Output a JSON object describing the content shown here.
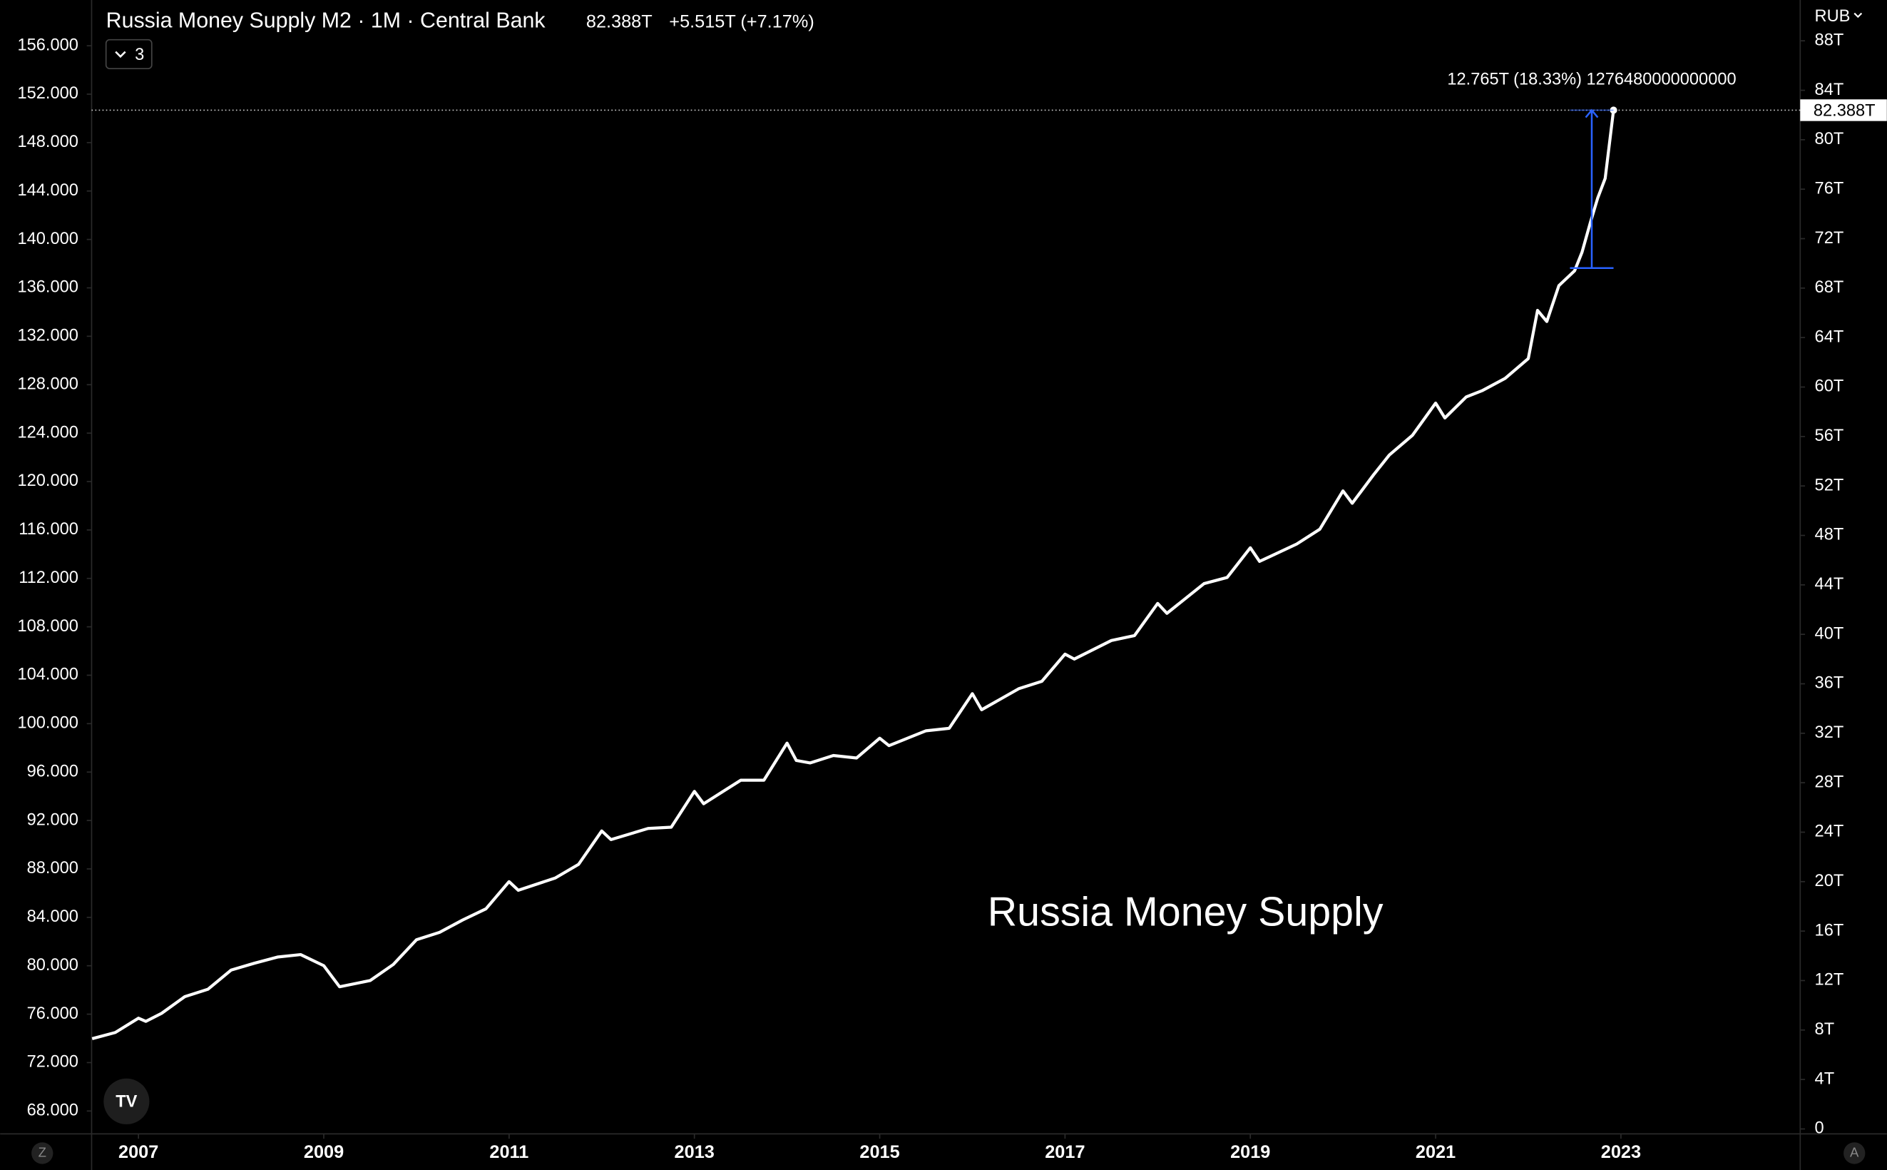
{
  "chart_data": {
    "type": "line",
    "title": "Russia Money Supply M2 · 1M · Central Bank",
    "last_value_label": "82.388T",
    "change_label": "+5.515T (+7.17%)",
    "indicator_count": "3",
    "currency": "RUB",
    "watermark": "Russia Money Supply",
    "price_label": "82.388T",
    "left_badge": "Z",
    "right_badge": "A",
    "measure": {
      "label": "12.765T (18.33%) 1276480000000000",
      "x": [
        2022.45,
        2022.92
      ],
      "y": [
        69.623,
        82.388
      ],
      "color": "#2962ff"
    },
    "xlim": [
      2006.494,
      2024.935
    ],
    "xticks": [
      2007,
      2009,
      2011,
      2013,
      2015,
      2017,
      2019,
      2021,
      2023
    ],
    "ylim": [
      66.11,
      159.78
    ],
    "yticks": [
      {
        "value": 68,
        "label": "68.000"
      },
      {
        "value": 72,
        "label": "72.000"
      },
      {
        "value": 76,
        "label": "76.000"
      },
      {
        "value": 80,
        "label": "80.000"
      },
      {
        "value": 84,
        "label": "84.000"
      },
      {
        "value": 88,
        "label": "88.000"
      },
      {
        "value": 92,
        "label": "92.000"
      },
      {
        "value": 96,
        "label": "96.000"
      },
      {
        "value": 100,
        "label": "100.000"
      },
      {
        "value": 104,
        "label": "104.000"
      },
      {
        "value": 108,
        "label": "108.000"
      },
      {
        "value": 112,
        "label": "112.000"
      },
      {
        "value": 116,
        "label": "116.000"
      },
      {
        "value": 120,
        "label": "120.000"
      },
      {
        "value": 124,
        "label": "124.000"
      },
      {
        "value": 128,
        "label": "128.000"
      },
      {
        "value": 132,
        "label": "132.000"
      },
      {
        "value": 136,
        "label": "136.000"
      },
      {
        "value": 140,
        "label": "140.000"
      },
      {
        "value": 144,
        "label": "144.000"
      },
      {
        "value": 148,
        "label": "148.000"
      },
      {
        "value": 152,
        "label": "152.000"
      },
      {
        "value": 156,
        "label": "156.000"
      }
    ],
    "y2lim": [
      -0.4,
      91.3
    ],
    "y2ticks": [
      0,
      {
        "value": 4,
        "label": "4T"
      },
      {
        "value": 8,
        "label": "8T"
      },
      {
        "value": 12,
        "label": "12T"
      },
      {
        "value": 16,
        "label": "16T"
      },
      {
        "value": 20,
        "label": "20T"
      },
      {
        "value": 24,
        "label": "24T"
      },
      {
        "value": 28,
        "label": "28T"
      },
      {
        "value": 32,
        "label": "32T"
      },
      {
        "value": 36,
        "label": "36T"
      },
      {
        "value": 40,
        "label": "40T"
      },
      {
        "value": 44,
        "label": "44T"
      },
      {
        "value": 48,
        "label": "48T"
      },
      {
        "value": 52,
        "label": "52T"
      },
      {
        "value": 56,
        "label": "56T"
      },
      {
        "value": 60,
        "label": "60T"
      },
      {
        "value": 64,
        "label": "64T"
      },
      {
        "value": 68,
        "label": "68T"
      },
      {
        "value": 72,
        "label": "72T"
      },
      {
        "value": 76,
        "label": "76T"
      },
      {
        "value": 80,
        "label": "80T"
      },
      {
        "value": 84,
        "label": "84T"
      },
      {
        "value": 88,
        "label": "88T"
      }
    ],
    "series": [
      {
        "name": "Russia Money Supply M2",
        "color": "#ffffff",
        "axis": "y2",
        "x": [
          2006.5,
          2006.75,
          2007.0,
          2007.08,
          2007.25,
          2007.5,
          2007.75,
          2008.0,
          2008.25,
          2008.5,
          2008.75,
          2009.0,
          2009.17,
          2009.5,
          2009.75,
          2010.0,
          2010.25,
          2010.5,
          2010.75,
          2011.0,
          2011.1,
          2011.5,
          2011.75,
          2012.0,
          2012.1,
          2012.5,
          2012.75,
          2013.0,
          2013.1,
          2013.5,
          2013.75,
          2014.0,
          2014.1,
          2014.25,
          2014.5,
          2014.75,
          2015.0,
          2015.1,
          2015.5,
          2015.75,
          2016.0,
          2016.1,
          2016.5,
          2016.75,
          2017.0,
          2017.1,
          2017.5,
          2017.75,
          2018.0,
          2018.1,
          2018.5,
          2018.75,
          2019.0,
          2019.1,
          2019.5,
          2019.75,
          2020.0,
          2020.1,
          2020.33,
          2020.5,
          2020.75,
          2021.0,
          2021.1,
          2021.33,
          2021.5,
          2021.75,
          2022.0,
          2022.1,
          2022.2,
          2022.33,
          2022.5,
          2022.58,
          2022.67,
          2022.75,
          2022.83,
          2022.92
        ],
        "values": [
          7.3,
          7.8,
          8.96,
          8.7,
          9.35,
          10.7,
          11.3,
          12.85,
          13.4,
          13.9,
          14.1,
          13.2,
          11.5,
          12.0,
          13.3,
          15.3,
          15.9,
          16.9,
          17.8,
          20.0,
          19.3,
          20.3,
          21.4,
          24.1,
          23.4,
          24.3,
          24.4,
          27.3,
          26.3,
          28.2,
          28.2,
          31.2,
          29.8,
          29.6,
          30.2,
          30.0,
          31.6,
          31.0,
          32.2,
          32.4,
          35.2,
          33.9,
          35.6,
          36.2,
          38.4,
          38.0,
          39.5,
          39.9,
          42.5,
          41.7,
          44.1,
          44.6,
          47.0,
          45.9,
          47.3,
          48.5,
          51.6,
          50.6,
          52.9,
          54.5,
          56.1,
          58.7,
          57.5,
          59.2,
          59.7,
          60.7,
          62.3,
          66.2,
          65.3,
          68.2,
          69.4,
          70.9,
          73.3,
          75.3,
          76.873,
          82.388
        ]
      }
    ]
  }
}
